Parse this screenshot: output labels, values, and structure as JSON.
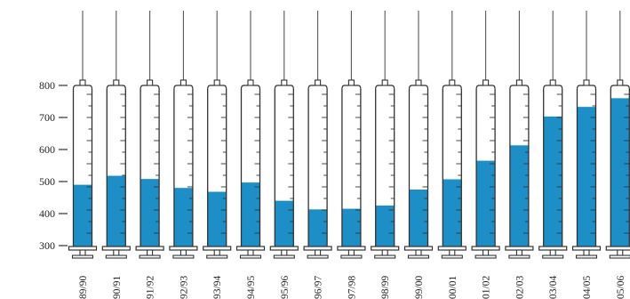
{
  "chart_data": {
    "type": "bar",
    "mark_style": "syringe",
    "categories": [
      "89/90",
      "90/91",
      "91/92",
      "92/93",
      "93/94",
      "94/95",
      "95/96",
      "96/97",
      "97/98",
      "98/99",
      "99/00",
      "00/01",
      "01/02",
      "02/03",
      "03/04",
      "04/05",
      "05/06"
    ],
    "values": [
      490,
      518,
      508,
      480,
      468,
      497,
      440,
      413,
      415,
      425,
      475,
      507,
      565,
      613,
      703,
      733,
      760
    ],
    "title": "",
    "xlabel": "",
    "ylabel": "",
    "ylim": [
      300,
      800
    ],
    "yticks": [
      300,
      400,
      500,
      600,
      700,
      800
    ],
    "grid": false,
    "colors": {
      "fill": "#1d8fc6",
      "outline": "#333333",
      "text": "#222222"
    }
  }
}
